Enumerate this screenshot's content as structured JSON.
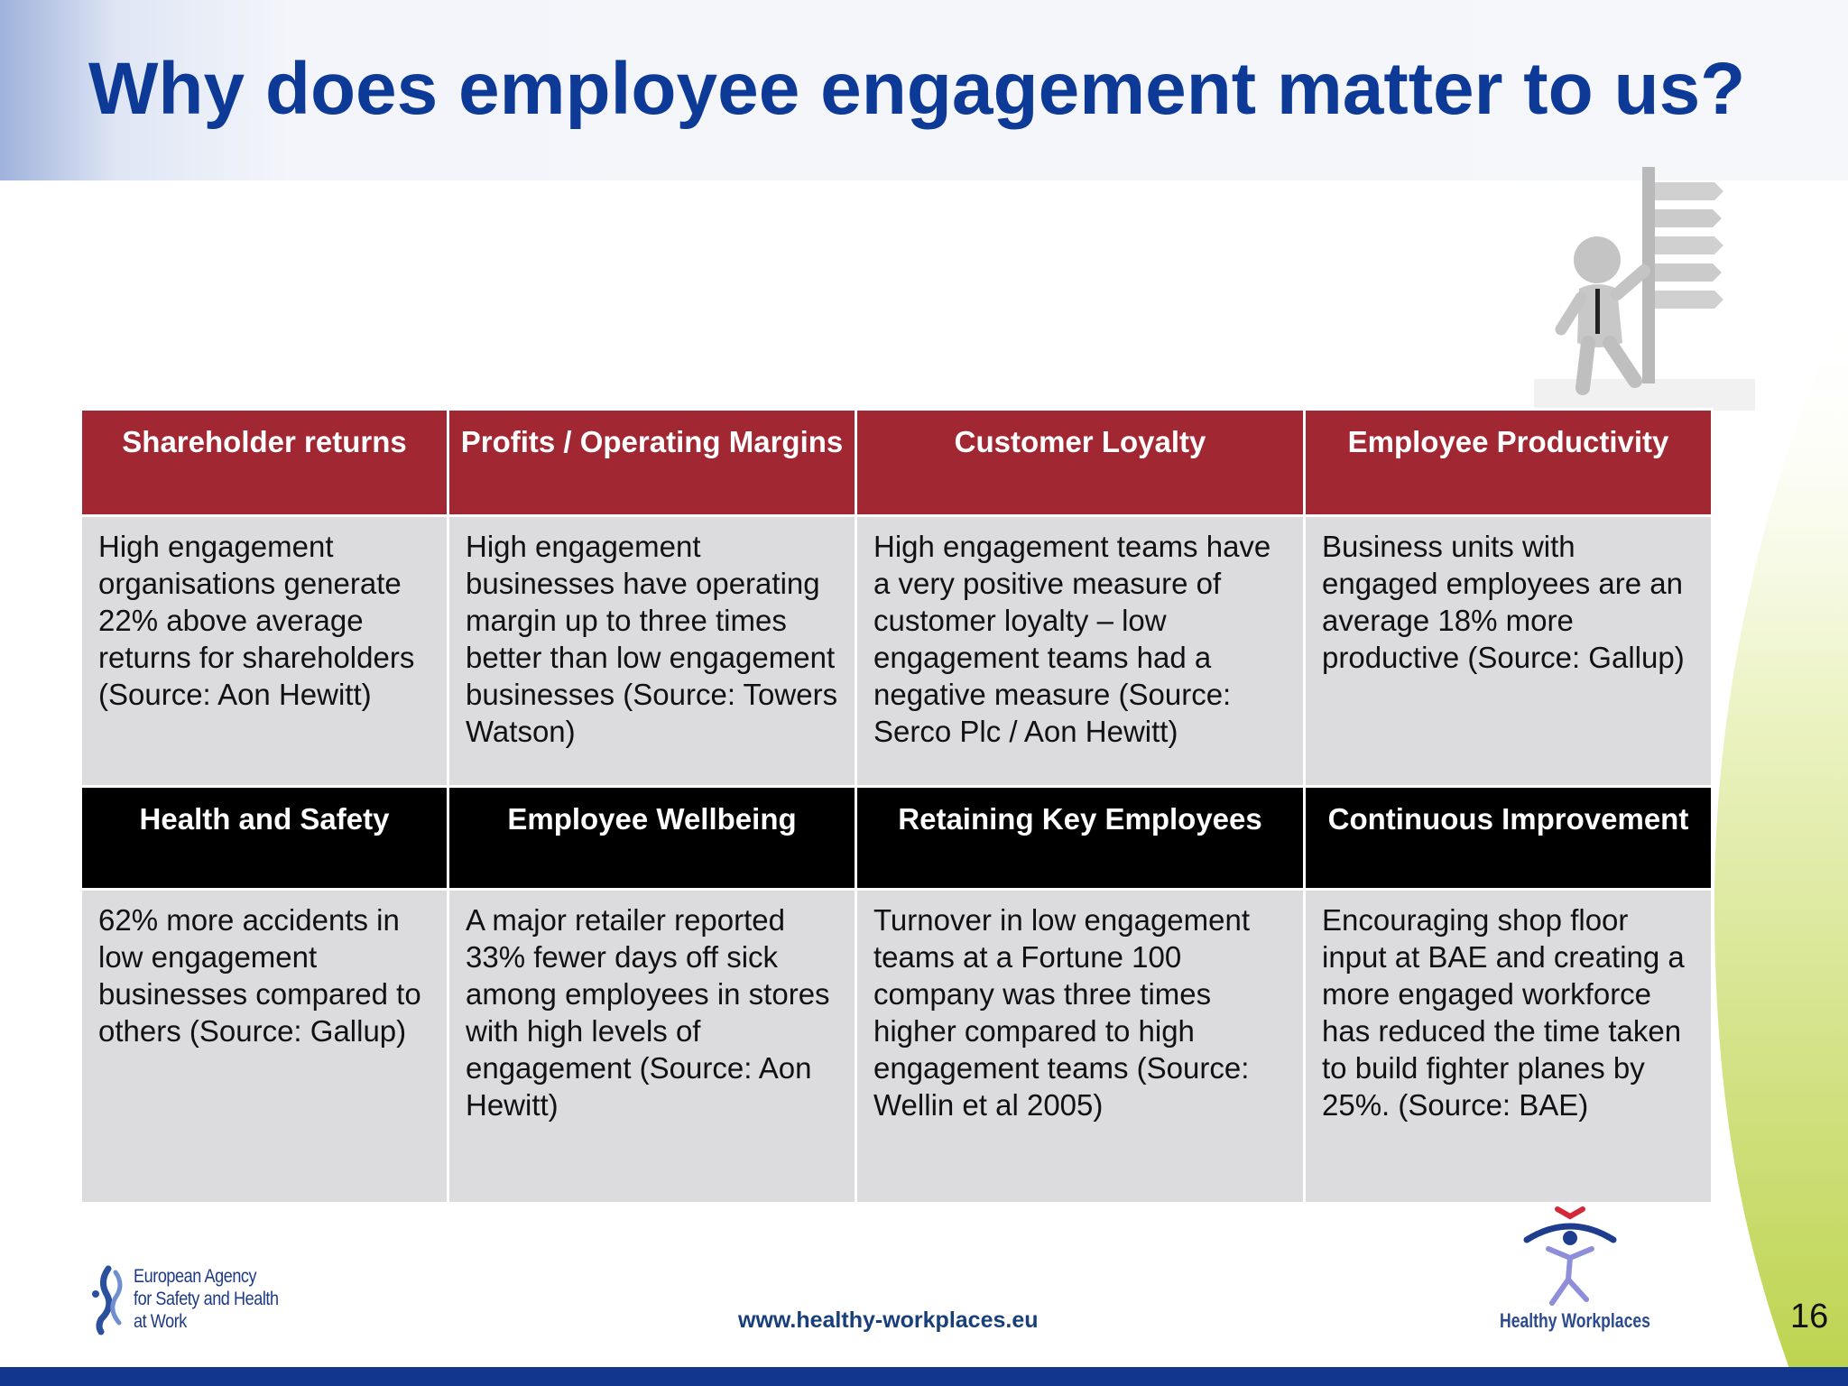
{
  "slide": {
    "title": "Why does employee engagement matter to us?",
    "page_number": "16",
    "website": "www.healthy-workplaces.eu"
  },
  "table": {
    "row1_headers": [
      "Shareholder returns",
      "Profits / Operating Margins",
      "Customer Loyalty",
      "Employee Productivity"
    ],
    "row1_bodies": [
      "High engagement organisations generate 22% above average returns for shareholders (Source: Aon Hewitt)",
      "High engagement businesses have operating margin up to three times better than low engagement businesses (Source: Towers Watson)",
      "High engagement teams have a very positive measure of customer loyalty – low engagement teams had a negative measure (Source: Serco Plc / Aon Hewitt)",
      "Business units with engaged employees are an average 18% more productive (Source: Gallup)"
    ],
    "row2_headers": [
      "Health and Safety",
      "Employee Wellbeing",
      "Retaining Key Employees",
      "Continuous Improvement"
    ],
    "row2_bodies": [
      "62% more accidents in low engagement businesses compared to others (Source: Gallup)",
      "A major retailer reported 33% fewer days off sick among employees in stores with high levels of engagement (Source: Aon Hewitt)",
      "Turnover in low engagement teams at a Fortune 100 company was three times higher compared to high engagement teams (Source: Wellin et al 2005)",
      "Encouraging shop floor input at BAE and creating a more engaged workforce has reduced the time taken to build fighter planes by 25%. (Source: BAE)"
    ]
  },
  "logos": {
    "agency_line1": "European Agency",
    "agency_line2": "for Safety and Health",
    "agency_line3": "at Work",
    "healthy_workplaces": "Healthy Workplaces"
  },
  "colors": {
    "title": "#0d3a96",
    "header_red": "#a12833",
    "header_black": "#000000",
    "cell_grey": "#dcdbde",
    "footer_bar": "#12368c",
    "accent_green": "#c9dc6a"
  },
  "icons": [
    "signpost-figure-icon",
    "eu-osha-logo-icon",
    "healthy-workplaces-logo-icon"
  ]
}
